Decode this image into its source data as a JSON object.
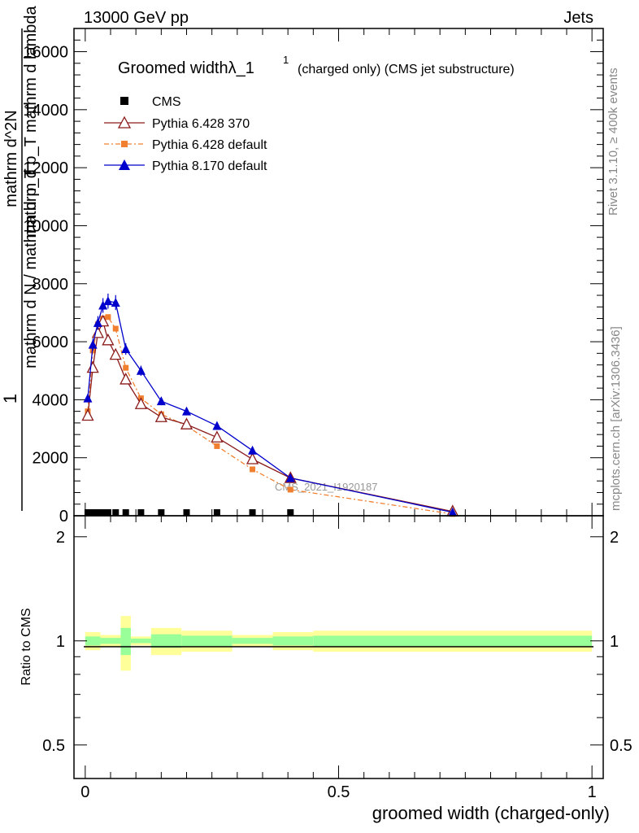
{
  "header": {
    "left": "13000 GeV pp",
    "right": "Jets"
  },
  "side_labels": {
    "rivet": "Rivet 3.1.10, ≥ 400k events",
    "mcplots": "mcplots.cern.ch [arXiv:1306.3436]"
  },
  "watermark": "CMS_2021_I1920187",
  "chart_data": [
    {
      "type": "line",
      "title_main": "Groomed widthλ_1",
      "title_sup": "1",
      "title_rest": "(charged only) (CMS jet substructure)",
      "ylabel_lines": [
        "1",
        "mathrm d N / mathrm d p_T",
        "mathrm d^2N",
        "mathrm d p_T mathrm d lambda"
      ],
      "xlim": [
        -0.0222,
        1.0222
      ],
      "ylim": [
        0,
        16800
      ],
      "yticks": [
        0,
        2000,
        4000,
        6000,
        8000,
        10000,
        12000,
        14000,
        16000
      ],
      "ytick_labels": [
        "0",
        "2000",
        "4000",
        "6000",
        "8000",
        "10000",
        "12000",
        "14000",
        "16000"
      ],
      "legend": [
        {
          "name": "CMS",
          "color": "#000000",
          "marker": "square"
        },
        {
          "name": "Pythia 6.428 370",
          "color": "#8b1a1a",
          "marker": "triangle-open"
        },
        {
          "name": "Pythia 6.428 default",
          "color": "#f08030",
          "marker": "square-small"
        },
        {
          "name": "Pythia 8.170 default",
          "color": "#0000cc",
          "marker": "triangle"
        }
      ],
      "series": [
        {
          "name": "CMS",
          "x": [
            0.005,
            0.015,
            0.025,
            0.035,
            0.045,
            0.06,
            0.08,
            0.11,
            0.15,
            0.2,
            0.26,
            0.33,
            0.405
          ],
          "values": [
            60,
            60,
            60,
            60,
            60,
            60,
            60,
            60,
            60,
            60,
            60,
            60,
            60
          ]
        },
        {
          "name": "Pythia 6.428 370",
          "x": [
            0.005,
            0.015,
            0.025,
            0.035,
            0.045,
            0.06,
            0.08,
            0.11,
            0.15,
            0.2,
            0.26,
            0.33,
            0.405,
            0.725
          ],
          "values": [
            3450,
            5100,
            6300,
            6700,
            6050,
            5550,
            4700,
            3850,
            3400,
            3150,
            2700,
            1950,
            1300,
            150
          ]
        },
        {
          "name": "Pythia 6.428 default",
          "x": [
            0.005,
            0.015,
            0.025,
            0.035,
            0.045,
            0.06,
            0.08,
            0.11,
            0.15,
            0.2,
            0.26,
            0.33,
            0.405,
            0.725
          ],
          "values": [
            3600,
            5700,
            6600,
            6800,
            6850,
            6450,
            5100,
            4050,
            3500,
            3100,
            2400,
            1600,
            900,
            60
          ]
        },
        {
          "name": "Pythia 8.170 default",
          "x": [
            0.005,
            0.015,
            0.025,
            0.035,
            0.045,
            0.06,
            0.08,
            0.11,
            0.15,
            0.2,
            0.26,
            0.33,
            0.405,
            0.725
          ],
          "values": [
            4050,
            5900,
            6650,
            7250,
            7400,
            7350,
            5750,
            5000,
            3950,
            3600,
            3100,
            2250,
            1300,
            120
          ]
        }
      ]
    },
    {
      "type": "area",
      "ylabel": "Ratio to CMS",
      "xlabel": "groomed width (charged-only)",
      "xticks": [
        0,
        0.5,
        1
      ],
      "xtick_labels": [
        "0",
        "0.5",
        "1"
      ],
      "ylim": [
        0.4,
        2.3
      ],
      "yticks": [
        0.5,
        1,
        2
      ],
      "ytick_labels": [
        "0.5",
        "1",
        "2"
      ],
      "bins": [
        0,
        0.03,
        0.07,
        0.09,
        0.13,
        0.19,
        0.29,
        0.37,
        0.45,
        1.0
      ],
      "yellow_band": [
        [
          0.94,
          1.06
        ],
        [
          0.96,
          1.04
        ],
        [
          0.82,
          1.18
        ],
        [
          0.97,
          1.03
        ],
        [
          0.91,
          1.09
        ],
        [
          0.93,
          1.07
        ],
        [
          0.96,
          1.04
        ],
        [
          0.94,
          1.06
        ],
        [
          0.93,
          1.07
        ]
      ],
      "green_band": [
        [
          0.97,
          1.03
        ],
        [
          0.98,
          1.02
        ],
        [
          0.91,
          1.09
        ],
        [
          0.985,
          1.015
        ],
        [
          0.955,
          1.045
        ],
        [
          0.965,
          1.035
        ],
        [
          0.98,
          1.02
        ],
        [
          0.97,
          1.03
        ],
        [
          0.965,
          1.035
        ]
      ],
      "reference": 1
    }
  ]
}
